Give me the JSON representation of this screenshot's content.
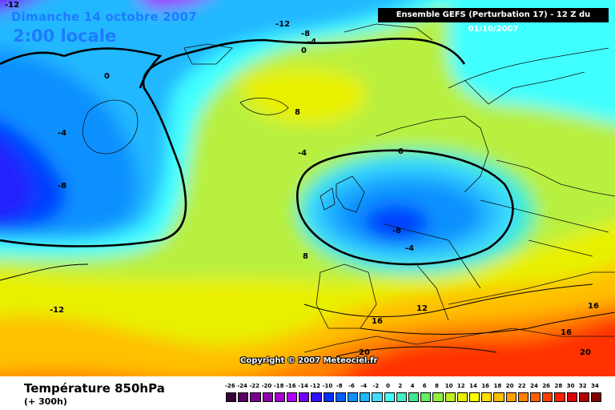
{
  "header": {
    "date": "Dimanche 14 octobre 2007",
    "local_time": "2:00 locale",
    "run_info": "Ensemble GEFS (Perturbation 17)  -  12 Z du 01/10/2007",
    "copyright": "Copyright © 2007 Meteociel.fr"
  },
  "footer": {
    "title": "Température 850hPa",
    "subtitle": "(+ 300h)"
  },
  "isotherm_labels": [
    {
      "text": "-12"
    },
    {
      "text": "-12"
    },
    {
      "text": "-8"
    },
    {
      "text": "-4"
    },
    {
      "text": "0"
    },
    {
      "text": "0"
    },
    {
      "text": "-4"
    },
    {
      "text": "-8"
    },
    {
      "text": "8"
    },
    {
      "text": "-4"
    },
    {
      "text": "0"
    },
    {
      "text": "-8"
    },
    {
      "text": "-4"
    },
    {
      "text": "8"
    },
    {
      "text": "-12"
    },
    {
      "text": "12"
    },
    {
      "text": "16"
    },
    {
      "text": "16"
    },
    {
      "text": "16"
    },
    {
      "text": "20"
    },
    {
      "text": "20"
    }
  ],
  "legend": {
    "labels": [
      "-26",
      "-24",
      "-22",
      "-20",
      "-18",
      "-16",
      "-14",
      "-12",
      "-10",
      "-8",
      "-6",
      "-4",
      "-2",
      "0",
      "2",
      "4",
      "6",
      "8",
      "10",
      "12",
      "14",
      "16",
      "18",
      "20",
      "22",
      "24",
      "26",
      "28",
      "30",
      "32",
      "34"
    ],
    "colors": [
      "#3a0038",
      "#5a0060",
      "#7a0090",
      "#9000b0",
      "#a800d0",
      "#b000ff",
      "#7000ff",
      "#3010ff",
      "#0030ff",
      "#0060ff",
      "#1090ff",
      "#20b8ff",
      "#40dcff",
      "#40ffff",
      "#40f0c0",
      "#40e890",
      "#60f060",
      "#90f040",
      "#c0f020",
      "#e8f000",
      "#ffff00",
      "#ffe000",
      "#ffc000",
      "#ffa000",
      "#ff8000",
      "#ff6000",
      "#ff4000",
      "#ff2000",
      "#e00000",
      "#b00000",
      "#800000"
    ]
  }
}
